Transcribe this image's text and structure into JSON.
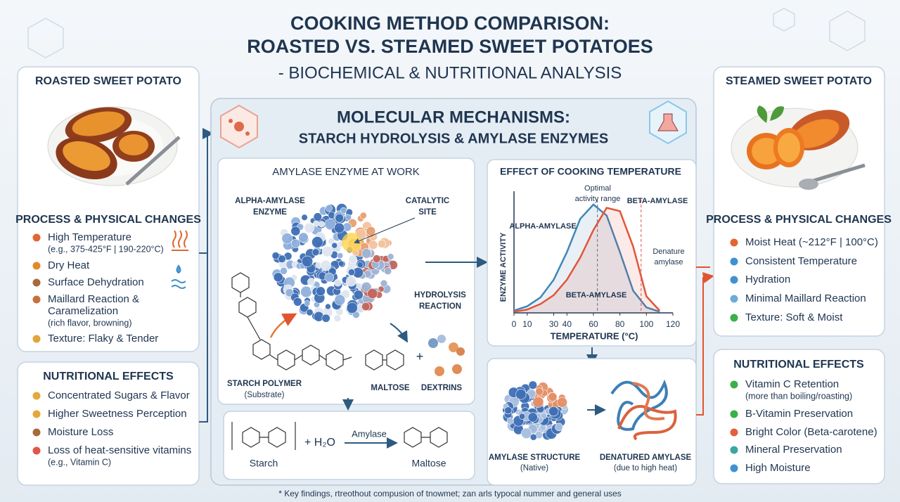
{
  "header": {
    "title_line1": "COOKING METHOD COMPARISON:",
    "title_line2": "ROASTED VS. STEAMED SWEET POTATOES",
    "subtitle": "- BIOCHEMICAL & NUTRITIONAL ANALYSIS"
  },
  "roasted": {
    "title": "ROASTED SWEET POTATO",
    "process_heading": "PROCESS & PHYSICAL CHANGES",
    "process": [
      {
        "lines": [
          "High Temperature"
        ],
        "note": "(e.g., 375-425°F | 190-220°C)"
      },
      {
        "lines": [
          "Dry Heat"
        ]
      },
      {
        "lines": [
          "Surface Dehydration"
        ]
      },
      {
        "lines": [
          "Maillard Reaction &",
          "Caramelization"
        ],
        "note": "(rich flavor, browning)"
      },
      {
        "lines": [
          "Texture: Flaky & Tender"
        ]
      }
    ],
    "nutrition_heading": "NUTRITIONAL EFFECTS",
    "nutrition": [
      {
        "lines": [
          "Concentrated Sugars & Flavor"
        ]
      },
      {
        "lines": [
          "Higher Sweetness Perception"
        ]
      },
      {
        "lines": [
          "Moisture Loss"
        ]
      },
      {
        "lines": [
          "Loss of heat-sensitive vitamins"
        ],
        "note": "(e.g., Vitamin C)"
      }
    ]
  },
  "mechanisms": {
    "title_line1": "MOLECULAR MECHANISMS:",
    "title_line2": "STARCH HYDROLYSIS & AMYLASE ENZYMES",
    "amylase_panel": {
      "title": "AMYLASE ENZYME AT WORK",
      "enzyme_label": [
        "ALPHA-AMYLASE",
        "ENZYME"
      ],
      "site_label": [
        "CATALYTIC",
        "SITE"
      ],
      "reaction_label": [
        "HYDROLYSIS",
        "REACTION"
      ],
      "substrate_label": [
        "STARCH POLYMER",
        "(Substrate)"
      ],
      "maltose": "MALTOSE",
      "plus": "+",
      "dextrins": "DEXTRINS"
    },
    "equation": {
      "starch": "Starch",
      "water": "+ H₂O",
      "enzyme": "Amylase",
      "product": "Maltose"
    },
    "temperature_chart": {
      "type": "line",
      "title": "EFFECT OF COOKING TEMPERATURE",
      "x_label": "TEMPERATURE (°C)",
      "y_label": "ENZYME ACTIVITY",
      "x": [
        0,
        10,
        20,
        30,
        40,
        50,
        60,
        70,
        80,
        90,
        100,
        110
      ],
      "series": [
        {
          "name": "ALPHA-AMYLASE",
          "color": "#3f86b8",
          "values": [
            2,
            6,
            14,
            30,
            55,
            85,
            98,
            88,
            55,
            20,
            5,
            1
          ]
        },
        {
          "name": "BETA-AMYLASE",
          "color": "#e2553a",
          "values": [
            1,
            3,
            8,
            16,
            30,
            50,
            75,
            95,
            92,
            60,
            15,
            2
          ]
        }
      ],
      "xlim": [
        0,
        120
      ],
      "ylim": [
        0,
        110
      ],
      "xticks": [
        0,
        10,
        30,
        40,
        60,
        80,
        100,
        120
      ],
      "reference_lines": [
        63,
        96
      ],
      "annotations": {
        "optimal": [
          "Optimal",
          "activity range"
        ],
        "beta_inner": "BETA-AMYLASE",
        "denature": [
          "Denature",
          "amylase"
        ]
      }
    },
    "structure_panel": {
      "native": [
        "AMYLASE STRUCTURE",
        "(Native)"
      ],
      "denatured": [
        "DENATURED AMYLASE",
        "(due to high heat)"
      ]
    }
  },
  "steamed": {
    "title": "STEAMED SWEET POTATO",
    "process_heading": "PROCESS & PHYSICAL CHANGES",
    "process": [
      {
        "lines": [
          "Moist Heat (~212°F | 100°C)"
        ]
      },
      {
        "lines": [
          "Consistent Temperature"
        ]
      },
      {
        "lines": [
          "Hydration"
        ]
      },
      {
        "lines": [
          "Minimal Maillard Reaction"
        ]
      },
      {
        "lines": [
          "Texture: Soft & Moist"
        ]
      }
    ],
    "nutrition_heading": "NUTRITIONAL EFFECTS",
    "nutrition": [
      {
        "lines": [
          "Vitamin C Retention"
        ],
        "note": "(more than boiling/roasting)"
      },
      {
        "lines": [
          "B-Vitamin Preservation"
        ]
      },
      {
        "lines": [
          "Bright Color (Beta-carotene)"
        ]
      },
      {
        "lines": [
          "Mineral Preservation"
        ]
      },
      {
        "lines": [
          "High Moisture"
        ]
      }
    ]
  },
  "footer": "* Key findings, rtreothout compusion of tnowmet; zan arls typocal nummer and general uses"
}
